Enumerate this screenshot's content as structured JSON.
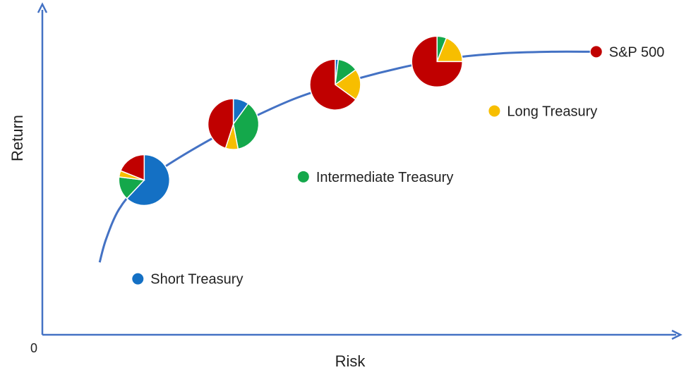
{
  "chart_data": {
    "type": "scatter",
    "xlabel": "Risk",
    "ylabel": "Return",
    "origin_label": "0",
    "colors": {
      "axis": "#4472C4",
      "frontier": "#4472C4",
      "Short Treasury": "#1470C4",
      "Intermediate Treasury": "#14A84B",
      "Long Treasury": "#F7BE00",
      "S&P 500": "#C00000"
    },
    "assets": [
      {
        "name": "Short Treasury",
        "risk": 0.15,
        "return": 0.17
      },
      {
        "name": "Intermediate Treasury",
        "risk": 0.41,
        "return": 0.48
      },
      {
        "name": "Long Treasury",
        "risk": 0.71,
        "return": 0.68
      },
      {
        "name": "S&P 500",
        "risk": 0.87,
        "return": 0.86
      }
    ],
    "frontier": [
      [
        0.09,
        0.22
      ],
      [
        0.1,
        0.29
      ],
      [
        0.12,
        0.38
      ],
      [
        0.15,
        0.45
      ],
      [
        0.2,
        0.52
      ],
      [
        0.27,
        0.6
      ],
      [
        0.33,
        0.66
      ],
      [
        0.4,
        0.72
      ],
      [
        0.48,
        0.77
      ],
      [
        0.56,
        0.81
      ],
      [
        0.64,
        0.84
      ],
      [
        0.72,
        0.855
      ],
      [
        0.8,
        0.86
      ],
      [
        0.86,
        0.86
      ]
    ],
    "portfolios": [
      {
        "risk": 0.16,
        "return": 0.47,
        "slices": [
          {
            "asset": "Short Treasury",
            "share": 0.62
          },
          {
            "asset": "Intermediate Treasury",
            "share": 0.15
          },
          {
            "asset": "Long Treasury",
            "share": 0.04
          },
          {
            "asset": "S&P 500",
            "share": 0.19
          }
        ]
      },
      {
        "risk": 0.3,
        "return": 0.64,
        "slices": [
          {
            "asset": "Short Treasury",
            "share": 0.1
          },
          {
            "asset": "Intermediate Treasury",
            "share": 0.37
          },
          {
            "asset": "Long Treasury",
            "share": 0.08
          },
          {
            "asset": "S&P 500",
            "share": 0.45
          }
        ]
      },
      {
        "risk": 0.46,
        "return": 0.76,
        "slices": [
          {
            "asset": "Short Treasury",
            "share": 0.02
          },
          {
            "asset": "Intermediate Treasury",
            "share": 0.13
          },
          {
            "asset": "Long Treasury",
            "share": 0.2
          },
          {
            "asset": "S&P 500",
            "share": 0.65
          }
        ]
      },
      {
        "risk": 0.62,
        "return": 0.83,
        "slices": [
          {
            "asset": "Short Treasury",
            "share": 0.0
          },
          {
            "asset": "Intermediate Treasury",
            "share": 0.06
          },
          {
            "asset": "Long Treasury",
            "share": 0.19
          },
          {
            "asset": "S&P 500",
            "share": 0.75
          }
        ]
      }
    ]
  }
}
